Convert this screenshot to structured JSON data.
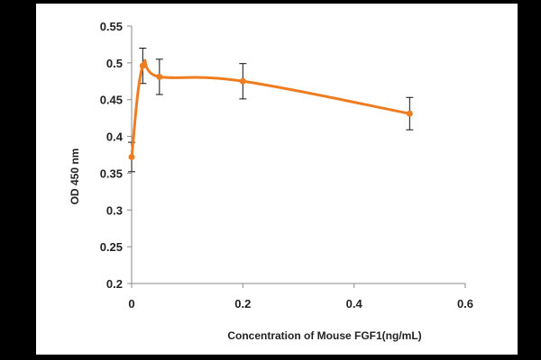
{
  "chart_data": {
    "type": "line",
    "title": "",
    "xlabel": "Concentration of Mouse FGF1(ng/mL)",
    "ylabel": "OD 450 nm",
    "xlim": [
      0,
      0.6
    ],
    "ylim": [
      0.2,
      0.55
    ],
    "x_ticks": [
      0,
      0.2,
      0.4,
      0.6
    ],
    "x_tick_labels": [
      "0",
      "0.2",
      "0.4",
      "0.6"
    ],
    "y_ticks": [
      0.2,
      0.25,
      0.3,
      0.35,
      0.4,
      0.45,
      0.5,
      0.55
    ],
    "y_tick_labels": [
      "0.2",
      "0.25",
      "0.3",
      "0.35",
      "0.4",
      "0.45",
      "0.5",
      "0.55"
    ],
    "grid": false,
    "legend": "none",
    "series": [
      {
        "color": "#ee7d22",
        "x": [
          0,
          0.02,
          0.05,
          0.2,
          0.5
        ],
        "y": [
          0.372,
          0.496,
          0.481,
          0.475,
          0.431
        ],
        "error": [
          0.02,
          0.024,
          0.024,
          0.024,
          0.022
        ]
      }
    ]
  }
}
